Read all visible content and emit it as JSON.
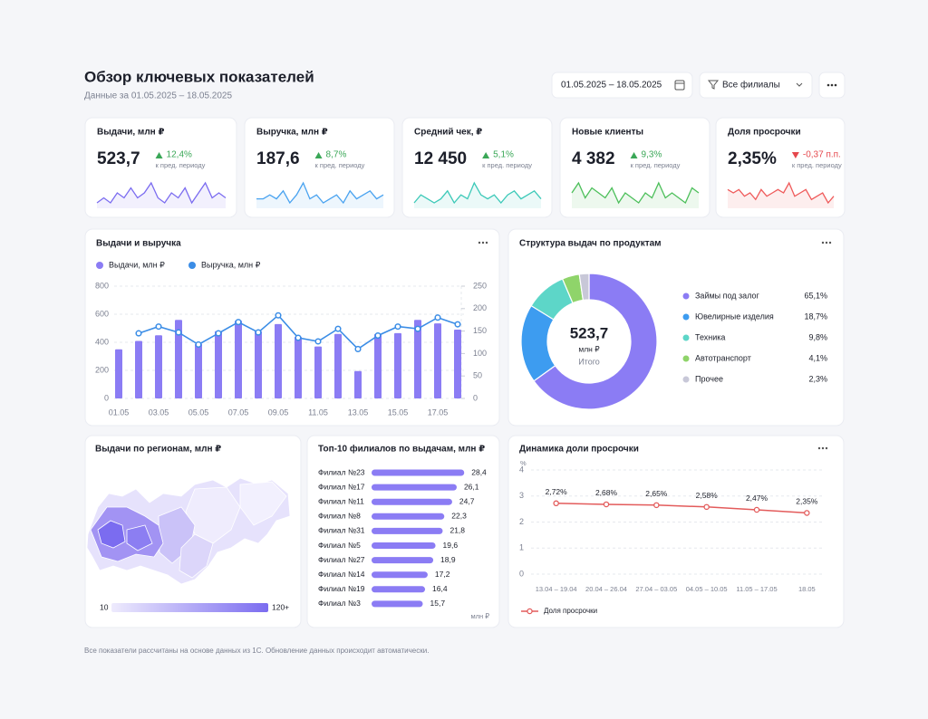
{
  "header": {
    "title": "Обзор ключевых показателей",
    "subtitle": "Данные за 01.05.2025 – 18.05.2025",
    "date_range": "01.05.2025 – 18.05.2025",
    "branch_filter": "Все филиалы"
  },
  "kpis": [
    {
      "label": "Выдачи, млн ₽",
      "value": "523,7",
      "delta": "12,4%",
      "trend": "up",
      "note": "к пред. периоду",
      "color": "#7b6cf0",
      "sparkline": [
        4,
        5,
        4,
        6,
        5,
        7,
        5,
        6,
        8,
        5,
        4,
        6,
        5,
        7,
        4,
        6,
        8,
        5,
        6,
        5
      ]
    },
    {
      "label": "Выручка, млн ₽",
      "value": "187,6",
      "delta": "8,7%",
      "trend": "up",
      "note": "к пред. периоду",
      "color": "#4aa3f0",
      "sparkline": [
        5,
        5,
        6,
        5,
        7,
        4,
        6,
        9,
        5,
        6,
        4,
        5,
        6,
        4,
        7,
        5,
        6,
        7,
        5,
        6
      ]
    },
    {
      "label": "Средний чек, ₽",
      "value": "12 450",
      "delta": "5,1%",
      "trend": "up",
      "note": "к пред. периоду",
      "color": "#3cc9b8",
      "sparkline": [
        4,
        6,
        5,
        4,
        5,
        7,
        4,
        6,
        5,
        9,
        6,
        5,
        6,
        4,
        6,
        7,
        5,
        6,
        7,
        5
      ]
    },
    {
      "label": "Новые клиенты",
      "value": "4 382",
      "delta": "9,3%",
      "trend": "up",
      "note": "к пред. периоду",
      "color": "#4cbf5a",
      "sparkline": [
        6,
        8,
        5,
        7,
        6,
        5,
        7,
        4,
        6,
        5,
        4,
        6,
        5,
        8,
        5,
        6,
        5,
        4,
        7,
        6
      ]
    },
    {
      "label": "Доля просрочки",
      "value": "2,35%",
      "delta": "-0,37 п.п.",
      "trend": "down",
      "note": "к пред. периоду",
      "color": "#ef5a5a",
      "sparkline": [
        6,
        5,
        6,
        4,
        5,
        3,
        6,
        4,
        5,
        6,
        5,
        8,
        4,
        5,
        6,
        3,
        4,
        5,
        2,
        4
      ]
    }
  ],
  "chart_data": [
    {
      "type": "bar-line",
      "title": "Выдачи и выручка",
      "categories": [
        "01.05",
        null,
        "03.05",
        null,
        "05.05",
        null,
        "07.05",
        null,
        "09.05",
        null,
        "11.05",
        null,
        "13.05",
        null,
        "15.05",
        null,
        "17.05",
        null
      ],
      "series": [
        {
          "name": "Выдачи, млн ₽",
          "type": "bar",
          "color": "#8b7cf4",
          "values": [
            350,
            410,
            450,
            560,
            390,
            480,
            555,
            480,
            530,
            440,
            370,
            460,
            195,
            460,
            465,
            560,
            535,
            490
          ]
        },
        {
          "name": "Выручка, млн ₽",
          "type": "line",
          "axis": "y2",
          "color": "#3b8de6",
          "values": [
            null,
            145,
            160,
            147,
            120,
            145,
            170,
            147,
            185,
            135,
            127,
            155,
            110,
            140,
            160,
            155,
            180,
            165
          ]
        }
      ],
      "ylim": [
        0,
        800
      ],
      "yticks": [
        0,
        200,
        400,
        600,
        800
      ],
      "y2lim": [
        0,
        250
      ],
      "y2ticks": [
        0,
        50,
        100,
        150,
        200,
        250
      ],
      "grid": true
    },
    {
      "type": "donut",
      "title": "Структура выдач по продуктам",
      "center_value": "523,7",
      "center_unit": "млн ₽",
      "center_label": "Итого",
      "categories": [
        "Займы под залог",
        "Ювелирные изделия",
        "Техника",
        "Автотранспорт",
        "Прочее"
      ],
      "values": [
        65.1,
        18.7,
        9.8,
        4.1,
        2.3
      ],
      "value_labels": [
        "65,1%",
        "18,7%",
        "9,8%",
        "4,1%",
        "2,3%"
      ],
      "colors": [
        "#8b7cf4",
        "#3d9cf0",
        "#5dd6c8",
        "#8fd46a",
        "#c8c8d8"
      ]
    },
    {
      "type": "map",
      "title": "Выдачи по регионам, млн ₽",
      "scale_labels": [
        "10",
        "120+"
      ],
      "colors": [
        "#eeebfd",
        "#7b6cf0"
      ]
    },
    {
      "type": "hbar",
      "title": "Топ-10 филиалов по выдачам, млн ₽",
      "categories": [
        "Филиал №23",
        "Филиал №17",
        "Филиал №11",
        "Филиал №8",
        "Филиал №31",
        "Филиал №5",
        "Филиал №27",
        "Филиал №14",
        "Филиал №19",
        "Филиал №3"
      ],
      "values": [
        28.4,
        26.1,
        24.7,
        22.3,
        21.8,
        19.6,
        18.9,
        17.2,
        16.4,
        15.7
      ],
      "value_labels": [
        "28,4",
        "26,1",
        "24,7",
        "22,3",
        "21,8",
        "19,6",
        "18,9",
        "17,2",
        "16,4",
        "15,7"
      ],
      "unit": "млн ₽",
      "color": "#8b7cf4"
    },
    {
      "type": "line",
      "title": "Динамика доли просрочки",
      "y_unit": "%",
      "categories": [
        "13.04 – 19.04",
        "20.04 – 26.04",
        "27.04 – 03.05",
        "04.05 – 10.05",
        "11.05 – 17.05",
        "18.05"
      ],
      "series": [
        {
          "name": "Доля просрочки",
          "color": "#e35b5b",
          "values": [
            2.72,
            2.68,
            2.65,
            2.58,
            2.47,
            2.35
          ],
          "value_labels": [
            "2,72%",
            "2,68%",
            "2,65%",
            "2,58%",
            "2,47%",
            "2,35%"
          ]
        }
      ],
      "ylim": [
        0,
        4
      ],
      "yticks": [
        0,
        1,
        2,
        3,
        4
      ],
      "grid": true
    }
  ],
  "footer": "Все показатели рассчитаны на основе данных из 1С. Обновление данных происходит автоматически."
}
